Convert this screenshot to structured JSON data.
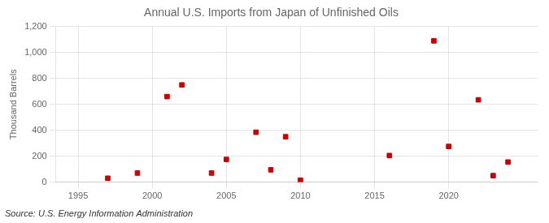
{
  "chart_data": {
    "type": "scatter",
    "title": "Annual U.S. Imports from Japan of Unfinished Oils",
    "ylabel": "Thousand Barrels",
    "source": "Source: U.S. Energy Information Administration",
    "x": [
      1997,
      1999,
      2001,
      2002,
      2004,
      2005,
      2007,
      2008,
      2009,
      2010,
      2016,
      2019,
      2020,
      2022,
      2023,
      2024
    ],
    "values": [
      30,
      70,
      660,
      750,
      70,
      175,
      385,
      95,
      350,
      15,
      205,
      1090,
      275,
      635,
      50,
      155
    ],
    "color": "#cc0000",
    "marker": "square",
    "xlim": [
      1993.5,
      2026
    ],
    "ylim": [
      0,
      1200
    ],
    "xticks": [
      1995,
      2000,
      2005,
      2010,
      2015,
      2020
    ],
    "yticks": [
      0,
      200,
      400,
      600,
      800,
      {
        "value": 1000,
        "label": "1,000"
      },
      {
        "value": 1200,
        "label": "1,200"
      }
    ],
    "grid": true
  }
}
